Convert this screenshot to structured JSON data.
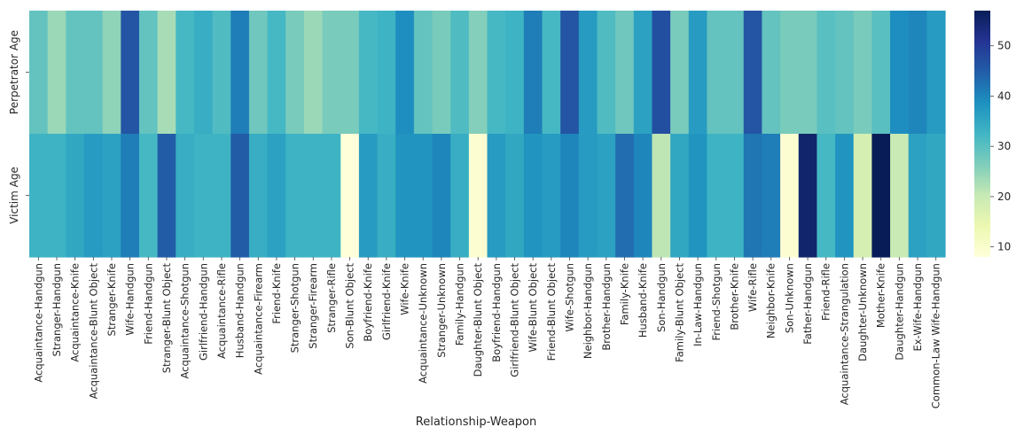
{
  "chart_data": {
    "type": "heatmap",
    "title": "",
    "xlabel": "Relationship-Weapon",
    "ylabel": "",
    "rows": [
      "Perpetrator Age",
      "Victim Age"
    ],
    "columns": [
      "Acquaintance-Handgun",
      "Stranger-Handgun",
      "Acquaintance-Knife",
      "Acquaintance-Blunt Object",
      "Stranger-Knife",
      "Wife-Handgun",
      "Friend-Handgun",
      "Stranger-Blunt Object",
      "Acquaintance-Shotgun",
      "Girlfriend-Handgun",
      "Acquaintance-Rifle",
      "Husband-Handgun",
      "Acquaintance-Firearm",
      "Friend-Knife",
      "Stranger-Shotgun",
      "Stranger-Firearm",
      "Stranger-Rifle",
      "Son-Blunt Object",
      "Boyfriend-Knife",
      "Girlfriend-Knife",
      "Wife-Knife",
      "Acquaintance-Unknown",
      "Stranger-Unknown",
      "Family-Handgun",
      "Daughter-Blunt Object",
      "Boyfriend-Handgun",
      "Girlfriend-Blunt Object",
      "Wife-Blunt Object",
      "Friend-Blunt Object",
      "Wife-Shotgun",
      "Neighbor-Handgun",
      "Brother-Handgun",
      "Family-Knife",
      "Husband-Knife",
      "Son-Handgun",
      "Family-Blunt Object",
      "In-Law-Handgun",
      "Friend-Shotgun",
      "Brother-Knife",
      "Wife-Rifle",
      "Neighbor-Knife",
      "Son-Unknown",
      "Father-Handgun",
      "Friend-Rifle",
      "Acquaintance-Strangulation",
      "Daughter-Unknown",
      "Mother-Knife",
      "Daughter-Handgun",
      "Ex-Wife-Handgun",
      "Common-Law Wife-Handgun"
    ],
    "values": [
      [
        29,
        24,
        29,
        29,
        25,
        46,
        29,
        23,
        32,
        34,
        31,
        41,
        28,
        32,
        27,
        24,
        27,
        27,
        32,
        33,
        39,
        29,
        27,
        31,
        26,
        32,
        33,
        41,
        32,
        46,
        37,
        31,
        28,
        36,
        47,
        27,
        37,
        29,
        29,
        46,
        29,
        27,
        27,
        30,
        29,
        27,
        30,
        39,
        40,
        37
      ],
      [
        33,
        33,
        35,
        37,
        36,
        41,
        32,
        45,
        34,
        33,
        33,
        45,
        34,
        36,
        33,
        33,
        33,
        8,
        37,
        34,
        38,
        38,
        40,
        34,
        9,
        37,
        35,
        38,
        37,
        40,
        37,
        36,
        43,
        40,
        21,
        35,
        38,
        33,
        33,
        42,
        41,
        9,
        55,
        32,
        38,
        18,
        57,
        20,
        36,
        35
      ]
    ],
    "colorbar": {
      "min": 8,
      "max": 57,
      "ticks": [
        10,
        20,
        30,
        40,
        50
      ]
    },
    "colormap": "YlGnBu",
    "colors": [
      "#ffffd9",
      "#edf8b1",
      "#c7e9b4",
      "#7fcdbb",
      "#41b6c4",
      "#1d91c0",
      "#225ea8",
      "#253494",
      "#081d58"
    ]
  }
}
